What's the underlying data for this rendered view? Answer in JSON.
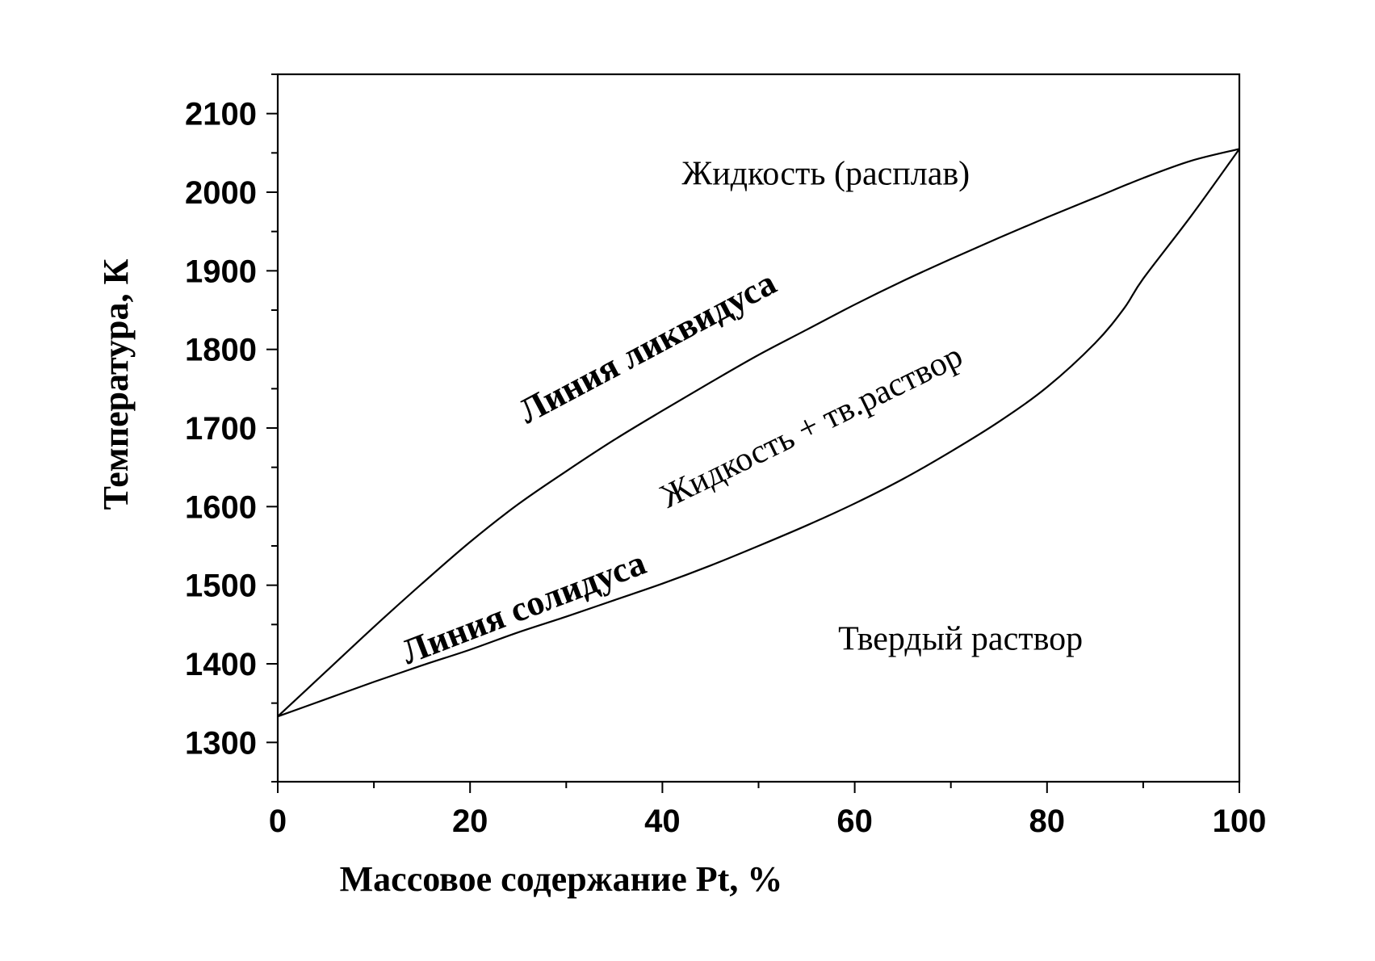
{
  "chart_data": {
    "type": "line",
    "xlabel": "Массовое содержание Pt, %",
    "ylabel": "Температура, К",
    "xlim": [
      0,
      100
    ],
    "ylim": [
      1250,
      2150
    ],
    "x_ticks": [
      0,
      20,
      40,
      60,
      80,
      100
    ],
    "x_tick_labels": [
      "0",
      "20",
      "40",
      "60",
      "80",
      "100"
    ],
    "y_ticks": [
      1300,
      1400,
      1500,
      1600,
      1700,
      1800,
      1900,
      2000,
      2100
    ],
    "y_tick_labels": [
      "1300",
      "1400",
      "1500",
      "1600",
      "1700",
      "1800",
      "1900",
      "2000",
      "2100"
    ],
    "grid": false,
    "series": [
      {
        "name": "Линия ликвидуса",
        "x": [
          0,
          5,
          10,
          15,
          20,
          25,
          30,
          35,
          40,
          45,
          50,
          55,
          60,
          65,
          70,
          75,
          80,
          85,
          90,
          95,
          100
        ],
        "y": [
          1333,
          1390,
          1447,
          1502,
          1555,
          1603,
          1645,
          1685,
          1722,
          1758,
          1793,
          1825,
          1857,
          1887,
          1915,
          1942,
          1968,
          1993,
          2018,
          2040,
          2055
        ]
      },
      {
        "name": "Линия солидуса",
        "x": [
          0,
          5,
          10,
          15,
          20,
          25,
          30,
          35,
          40,
          45,
          50,
          55,
          60,
          65,
          70,
          75,
          80,
          85,
          88,
          90,
          95,
          100
        ],
        "y": [
          1333,
          1355,
          1377,
          1398,
          1418,
          1440,
          1460,
          1481,
          1502,
          1525,
          1550,
          1576,
          1604,
          1635,
          1670,
          1708,
          1752,
          1808,
          1852,
          1890,
          1970,
          2055
        ]
      }
    ],
    "annotations": [
      {
        "text": "Жидкость (расплав)",
        "x": 57,
        "y": 2010
      },
      {
        "text": "Жидкость + тв.раствор",
        "x": 56,
        "y": 1690
      },
      {
        "text": "Твердый раствор",
        "x": 71,
        "y": 1418
      },
      {
        "text": "Линия ликвидуса",
        "x": 39,
        "y": 1790
      },
      {
        "text": "Линия солидуса",
        "x": 26,
        "y": 1458
      }
    ]
  }
}
